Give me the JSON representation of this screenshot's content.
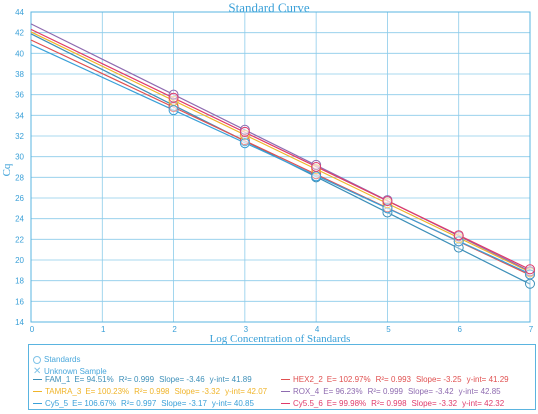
{
  "chart_data": {
    "type": "scatter",
    "title": "Standard Curve",
    "xlabel": "Log Concentration of Standards",
    "ylabel": "Cq",
    "xlim": [
      0,
      7
    ],
    "ylim": [
      14,
      44
    ],
    "xticks": [
      0,
      1,
      2,
      3,
      4,
      5,
      6,
      7
    ],
    "yticks": [
      14,
      16,
      18,
      20,
      22,
      24,
      26,
      28,
      30,
      32,
      34,
      36,
      38,
      40,
      42,
      44
    ],
    "grid": true,
    "x": [
      2,
      3,
      4,
      5,
      6,
      7
    ],
    "series": [
      {
        "name": "FAM_1",
        "color": "#3d8fb8",
        "efficiency": "94.51%",
        "r2": "0.999",
        "slope": -3.46,
        "slope_label": "-3.46",
        "yint": 41.89,
        "yint_label": "41.89",
        "points": [
          34.9,
          31.5,
          28.0,
          24.6,
          21.2,
          17.7
        ]
      },
      {
        "name": "HEX2_2",
        "color": "#e05050",
        "efficiency": "102.97%",
        "r2": "0.993",
        "slope": -3.25,
        "slope_label": "-3.25",
        "yint": 41.29,
        "yint_label": "41.29",
        "points": [
          34.8,
          31.6,
          28.3,
          25.1,
          21.8,
          18.6
        ]
      },
      {
        "name": "TAMRA_3",
        "color": "#f0b429",
        "efficiency": "100.23%",
        "r2": "0.998",
        "slope": -3.32,
        "slope_label": "-3.32",
        "yint": 42.07,
        "yint_label": "42.07",
        "points": [
          35.4,
          32.1,
          28.8,
          25.5,
          22.1,
          18.8
        ]
      },
      {
        "name": "ROX_4",
        "color": "#8e6bb0",
        "efficiency": "96.23%",
        "r2": "0.999",
        "slope": -3.42,
        "slope_label": "-3.42",
        "yint": 42.85,
        "yint_label": "42.85",
        "points": [
          36.0,
          32.6,
          29.2,
          25.8,
          22.3,
          18.9
        ]
      },
      {
        "name": "Cy5_5",
        "color": "#3aa0d8",
        "efficiency": "106.67%",
        "r2": "0.997",
        "slope": -3.17,
        "slope_label": "-3.17",
        "yint": 40.85,
        "yint_label": "40.85",
        "points": [
          34.5,
          31.3,
          28.1,
          25.0,
          21.8,
          18.6
        ]
      },
      {
        "name": "Cy5.5_6",
        "color": "#e03a6a",
        "efficiency": "99.98%",
        "r2": "0.998",
        "slope": -3.32,
        "slope_label": "-3.32",
        "yint": 42.32,
        "yint_label": "42.32",
        "points": [
          35.7,
          32.4,
          29.0,
          25.7,
          22.4,
          19.1
        ]
      }
    ],
    "legend": {
      "placement": "bottom",
      "standards_label": "Standards",
      "unknown_label": "Unknown Sample",
      "e_prefix": "E= ",
      "r2_prefix": "R²= ",
      "slope_prefix": "Slope= ",
      "yint_prefix": "y-int= "
    }
  }
}
